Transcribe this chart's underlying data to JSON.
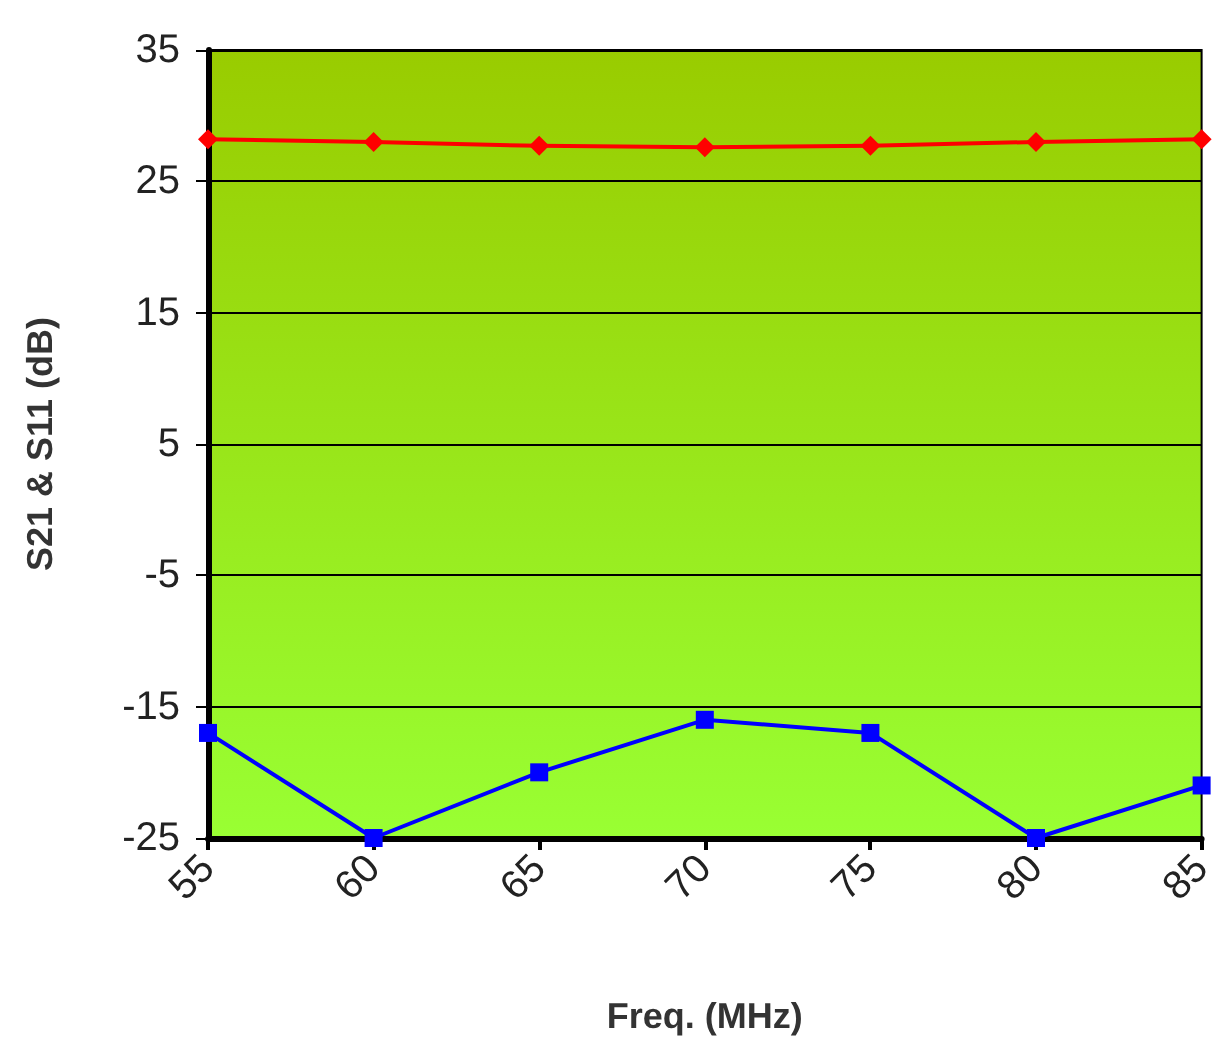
{
  "chart_data": {
    "type": "line",
    "xlabel": "Freq. (MHz)",
    "ylabel": "S21 & S11 (dB)",
    "x": [
      55,
      60,
      65,
      70,
      75,
      80,
      85
    ],
    "xlim": [
      55,
      85
    ],
    "xticks": [
      55,
      60,
      65,
      70,
      75,
      80,
      85
    ],
    "ylim": [
      -25,
      35
    ],
    "yticks": [
      -25,
      -15,
      -5,
      5,
      15,
      25,
      35
    ],
    "grid": "y",
    "series": [
      {
        "color": "#ff0000",
        "marker": "diamond",
        "values": [
          28.2,
          28.0,
          27.7,
          27.6,
          27.7,
          28.0,
          28.2
        ]
      },
      {
        "color": "#0000ff",
        "marker": "square",
        "values": [
          -17,
          -25,
          -20,
          -16,
          -17,
          -25,
          -21
        ]
      }
    ]
  }
}
